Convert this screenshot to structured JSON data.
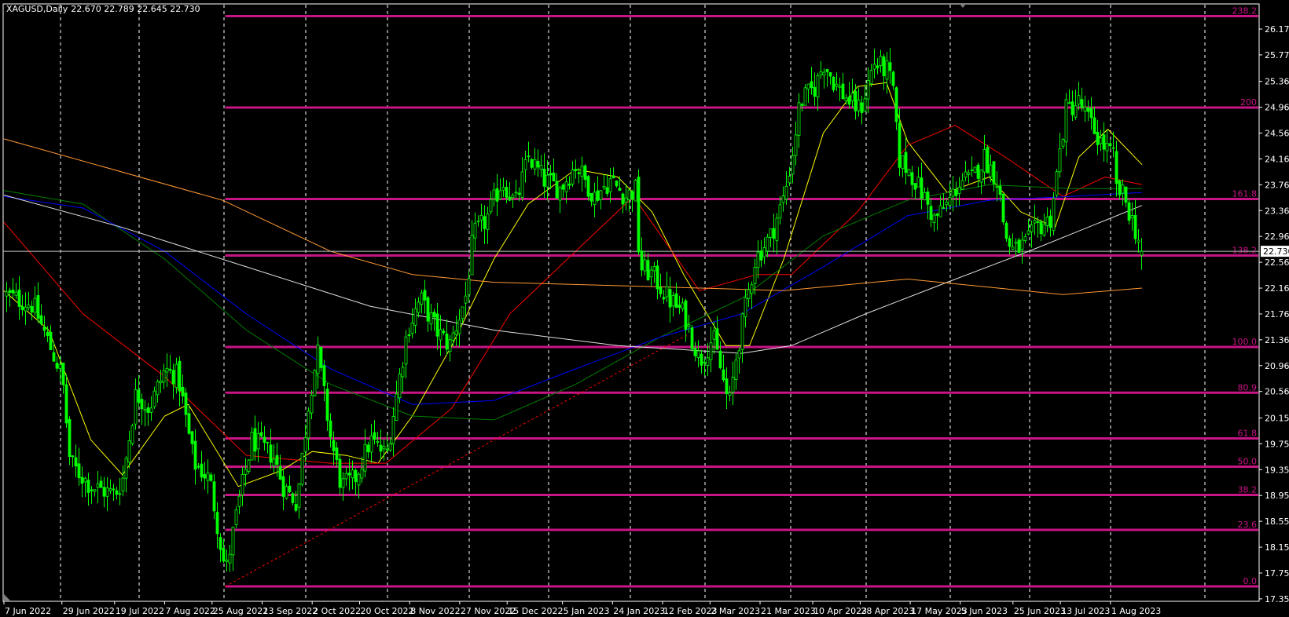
{
  "header": {
    "symbol": "XAGUSD,Daily",
    "ohlc": "22.670 22.789 22.645 22.730"
  },
  "colors": {
    "background": "#000000",
    "candle": "#00ff00",
    "grid": "#ffffff",
    "fibo": "#c71585",
    "fibo_label": "#c71585",
    "trendline": "#ff0000",
    "price_line": "#c0c0c0"
  },
  "chart_data": {
    "type": "candlestick",
    "symbol": "XAGUSD",
    "timeframe": "Daily",
    "last": {
      "open": 22.67,
      "high": 22.789,
      "low": 22.645,
      "close": 22.73
    },
    "ylim": [
      17.35,
      26.37
    ],
    "xlim": [
      "2022-06-07",
      "2023-08-14"
    ],
    "grid": true,
    "y_ticks": [
      "26.170",
      "25.770",
      "25.360",
      "24.960",
      "24.560",
      "24.160",
      "23.760",
      "23.360",
      "22.960",
      "22.560",
      "22.160",
      "21.760",
      "21.360",
      "20.960",
      "20.560",
      "20.150",
      "19.750",
      "19.350",
      "18.950",
      "18.550",
      "18.150",
      "17.750",
      "17.350"
    ],
    "x_ticks": [
      {
        "date": "2022-06-07",
        "label": "7 Jun 2022"
      },
      {
        "date": "2022-06-29",
        "label": "29 Jun 2022"
      },
      {
        "date": "2022-07-19",
        "label": "19 Jul 2022"
      },
      {
        "date": "2022-08-07",
        "label": "7 Aug 2022"
      },
      {
        "date": "2022-08-25",
        "label": "25 Aug 2022"
      },
      {
        "date": "2022-09-13",
        "label": "13 Sep 2022"
      },
      {
        "date": "2022-10-02",
        "label": "2 Oct 2022"
      },
      {
        "date": "2022-10-20",
        "label": "20 Oct 2022"
      },
      {
        "date": "2022-11-08",
        "label": "8 Nov 2022"
      },
      {
        "date": "2022-11-27",
        "label": "27 Nov 2022"
      },
      {
        "date": "2022-12-15",
        "label": "15 Dec 2022"
      },
      {
        "date": "2023-01-05",
        "label": "5 Jan 2023"
      },
      {
        "date": "2023-01-24",
        "label": "24 Jan 2023"
      },
      {
        "date": "2023-02-12",
        "label": "12 Feb 2023"
      },
      {
        "date": "2023-03-02",
        "label": "2 Mar 2023"
      },
      {
        "date": "2023-03-21",
        "label": "21 Mar 2023"
      },
      {
        "date": "2023-04-10",
        "label": "10 Apr 2023"
      },
      {
        "date": "2023-04-28",
        "label": "28 Apr 2023"
      },
      {
        "date": "2023-05-17",
        "label": "17 May 2023"
      },
      {
        "date": "2023-06-05",
        "label": "5 Jun 2023"
      },
      {
        "date": "2023-06-25",
        "label": "25 Jun 2023"
      },
      {
        "date": "2023-07-13",
        "label": "13 Jul 2023"
      },
      {
        "date": "2023-08-01",
        "label": "1 Aug 2023"
      }
    ],
    "current_price": "22.730",
    "fibonacci": {
      "from": {
        "date": "2022-08-30",
        "price": 17.543
      },
      "to": {
        "date": "2023-03-08",
        "price": 21.249
      },
      "levels": [
        {
          "label": "0.0",
          "ratio": 0.0
        },
        {
          "label": "23.6",
          "ratio": 23.6
        },
        {
          "label": "38.2",
          "ratio": 38.2
        },
        {
          "label": "50.0",
          "ratio": 50.0
        },
        {
          "label": "61.8",
          "ratio": 61.8
        },
        {
          "label": "80.9",
          "ratio": 80.9
        },
        {
          "label": "100.0",
          "ratio": 100.0
        },
        {
          "label": "138.2",
          "ratio": 138.2
        },
        {
          "label": "161.8",
          "ratio": 161.8
        },
        {
          "label": "200",
          "ratio": 200
        },
        {
          "label": "238.2",
          "ratio": 238.2
        }
      ]
    },
    "trendline": [
      [
        "2022-08-30",
        17.543
      ],
      [
        "2023-02-22",
        21.45
      ]
    ],
    "close_path": [
      [
        "2022-06-07",
        22.06
      ],
      [
        "2022-06-18",
        21.9
      ],
      [
        "2022-06-29",
        20.79
      ],
      [
        "2022-07-02",
        19.45
      ],
      [
        "2022-07-10",
        19.09
      ],
      [
        "2022-07-19",
        18.97
      ],
      [
        "2022-07-22",
        19.2
      ],
      [
        "2022-07-27",
        20.54
      ],
      [
        "2022-08-01",
        20.3
      ],
      [
        "2022-08-07",
        20.9
      ],
      [
        "2022-08-12",
        20.8
      ],
      [
        "2022-08-18",
        19.45
      ],
      [
        "2022-08-24",
        19.2
      ],
      [
        "2022-08-30",
        17.75
      ],
      [
        "2022-09-04",
        18.84
      ],
      [
        "2022-09-09",
        19.81
      ],
      [
        "2022-09-17",
        19.57
      ],
      [
        "2022-09-21",
        19.09
      ],
      [
        "2022-09-26",
        18.84
      ],
      [
        "2022-10-01",
        20.54
      ],
      [
        "2022-10-04",
        21.15
      ],
      [
        "2022-10-09",
        19.81
      ],
      [
        "2022-10-13",
        19.09
      ],
      [
        "2022-10-18",
        19.2
      ],
      [
        "2022-10-24",
        19.81
      ],
      [
        "2022-10-30",
        19.57
      ],
      [
        "2022-11-03",
        20.54
      ],
      [
        "2022-11-07",
        21.51
      ],
      [
        "2022-11-12",
        22.0
      ],
      [
        "2022-11-18",
        21.51
      ],
      [
        "2022-11-23",
        21.27
      ],
      [
        "2022-11-29",
        22.0
      ],
      [
        "2022-12-02",
        22.97
      ],
      [
        "2022-12-07",
        23.22
      ],
      [
        "2022-12-13",
        23.83
      ],
      [
        "2022-12-18",
        23.46
      ],
      [
        "2022-12-23",
        24.19
      ],
      [
        "2022-12-29",
        23.83
      ],
      [
        "2023-01-04",
        23.7
      ],
      [
        "2023-01-10",
        24.07
      ],
      [
        "2023-01-17",
        23.58
      ],
      [
        "2023-01-23",
        23.83
      ],
      [
        "2023-01-29",
        23.58
      ],
      [
        "2023-02-02",
        23.7
      ],
      [
        "2023-02-03",
        22.49
      ],
      [
        "2023-02-08",
        22.37
      ],
      [
        "2023-02-14",
        22.0
      ],
      [
        "2023-02-20",
        21.76
      ],
      [
        "2023-02-26",
        21.03
      ],
      [
        "2023-03-03",
        21.4
      ],
      [
        "2023-03-08",
        20.54
      ],
      [
        "2023-03-09",
        20.3
      ],
      [
        "2023-03-12",
        21.15
      ],
      [
        "2023-03-16",
        22.0
      ],
      [
        "2023-03-19",
        22.61
      ],
      [
        "2023-03-25",
        22.97
      ],
      [
        "2023-03-30",
        23.58
      ],
      [
        "2023-04-02",
        24.19
      ],
      [
        "2023-04-05",
        25.04
      ],
      [
        "2023-04-11",
        25.28
      ],
      [
        "2023-04-14",
        25.65
      ],
      [
        "2023-04-19",
        25.28
      ],
      [
        "2023-04-24",
        25.04
      ],
      [
        "2023-04-28",
        24.92
      ],
      [
        "2023-05-03",
        25.65
      ],
      [
        "2023-05-08",
        25.53
      ],
      [
        "2023-05-11",
        25.16
      ],
      [
        "2023-05-12",
        24.19
      ],
      [
        "2023-05-17",
        23.95
      ],
      [
        "2023-05-22",
        23.58
      ],
      [
        "2023-05-26",
        23.22
      ],
      [
        "2023-05-31",
        23.46
      ],
      [
        "2023-06-05",
        23.83
      ],
      [
        "2023-06-09",
        23.83
      ],
      [
        "2023-06-14",
        24.19
      ],
      [
        "2023-06-19",
        23.83
      ],
      [
        "2023-06-22",
        22.97
      ],
      [
        "2023-06-25",
        22.73
      ],
      [
        "2023-06-30",
        22.85
      ],
      [
        "2023-07-04",
        23.1
      ],
      [
        "2023-07-09",
        23.22
      ],
      [
        "2023-07-12",
        24.07
      ],
      [
        "2023-07-15",
        24.92
      ],
      [
        "2023-07-20",
        25.04
      ],
      [
        "2023-07-23",
        24.8
      ],
      [
        "2023-07-28",
        24.43
      ],
      [
        "2023-08-02",
        24.19
      ],
      [
        "2023-08-03",
        23.7
      ],
      [
        "2023-08-06",
        23.58
      ],
      [
        "2023-08-09",
        23.22
      ],
      [
        "2023-08-13",
        22.73
      ]
    ],
    "moving_averages": [
      {
        "color": "#ffff00",
        "points": [
          [
            "2022-06-07",
            22.12
          ],
          [
            "2022-06-24",
            21.51
          ],
          [
            "2022-07-10",
            19.81
          ],
          [
            "2022-07-22",
            19.27
          ],
          [
            "2022-08-07",
            20.18
          ],
          [
            "2022-08-16",
            20.36
          ],
          [
            "2022-09-04",
            19.09
          ],
          [
            "2022-09-20",
            19.33
          ],
          [
            "2022-10-02",
            19.63
          ],
          [
            "2022-10-15",
            19.57
          ],
          [
            "2022-10-27",
            19.45
          ],
          [
            "2022-11-09",
            20.18
          ],
          [
            "2022-11-24",
            21.27
          ],
          [
            "2022-12-10",
            22.61
          ],
          [
            "2022-12-23",
            23.46
          ],
          [
            "2023-01-10",
            24.0
          ],
          [
            "2023-01-26",
            23.88
          ],
          [
            "2023-02-08",
            23.34
          ],
          [
            "2023-02-20",
            22.37
          ],
          [
            "2023-03-08",
            21.27
          ],
          [
            "2023-03-17",
            21.27
          ],
          [
            "2023-03-30",
            22.61
          ],
          [
            "2023-04-14",
            24.56
          ],
          [
            "2023-04-27",
            25.28
          ],
          [
            "2023-05-08",
            25.34
          ],
          [
            "2023-05-16",
            24.43
          ],
          [
            "2023-05-31",
            23.64
          ],
          [
            "2023-06-16",
            23.88
          ],
          [
            "2023-06-28",
            23.34
          ],
          [
            "2023-07-11",
            23.1
          ],
          [
            "2023-07-20",
            24.19
          ],
          [
            "2023-07-31",
            24.62
          ],
          [
            "2023-08-13",
            24.07
          ]
        ]
      },
      {
        "color": "#ff0000",
        "points": [
          [
            "2022-06-07",
            23.18
          ],
          [
            "2022-07-07",
            21.76
          ],
          [
            "2022-08-07",
            20.79
          ],
          [
            "2022-09-07",
            19.57
          ],
          [
            "2022-10-09",
            19.45
          ],
          [
            "2022-10-30",
            19.45
          ],
          [
            "2022-11-24",
            20.3
          ],
          [
            "2022-12-16",
            21.76
          ],
          [
            "2023-01-10",
            22.73
          ],
          [
            "2023-02-01",
            23.58
          ],
          [
            "2023-02-26",
            22.12
          ],
          [
            "2023-03-20",
            22.37
          ],
          [
            "2023-04-02",
            22.37
          ],
          [
            "2023-04-27",
            23.34
          ],
          [
            "2023-05-16",
            24.37
          ],
          [
            "2023-06-03",
            24.68
          ],
          [
            "2023-06-22",
            24.19
          ],
          [
            "2023-07-14",
            23.58
          ],
          [
            "2023-07-30",
            23.88
          ],
          [
            "2023-08-13",
            23.76
          ]
        ]
      },
      {
        "color": "#008000",
        "points": [
          [
            "2022-06-07",
            23.67
          ],
          [
            "2022-07-07",
            23.46
          ],
          [
            "2022-08-07",
            22.61
          ],
          [
            "2022-09-07",
            21.51
          ],
          [
            "2022-10-09",
            20.67
          ],
          [
            "2022-11-09",
            20.18
          ],
          [
            "2022-12-10",
            20.12
          ],
          [
            "2023-01-10",
            20.67
          ],
          [
            "2023-02-11",
            21.4
          ],
          [
            "2023-03-14",
            22.0
          ],
          [
            "2023-04-14",
            22.97
          ],
          [
            "2023-05-16",
            23.52
          ],
          [
            "2023-06-16",
            23.76
          ],
          [
            "2023-07-17",
            23.7
          ],
          [
            "2023-08-13",
            23.7
          ]
        ]
      },
      {
        "color": "#0000ff",
        "points": [
          [
            "2022-06-07",
            23.58
          ],
          [
            "2022-07-07",
            23.4
          ],
          [
            "2022-08-07",
            22.73
          ],
          [
            "2022-09-07",
            21.76
          ],
          [
            "2022-10-09",
            20.91
          ],
          [
            "2022-11-09",
            20.36
          ],
          [
            "2022-12-10",
            20.42
          ],
          [
            "2023-01-10",
            20.91
          ],
          [
            "2023-02-11",
            21.4
          ],
          [
            "2023-03-14",
            21.76
          ],
          [
            "2023-04-14",
            22.49
          ],
          [
            "2023-05-16",
            23.28
          ],
          [
            "2023-06-16",
            23.52
          ],
          [
            "2023-07-17",
            23.58
          ],
          [
            "2023-08-13",
            23.64
          ]
        ]
      },
      {
        "color": "#e0e0e0",
        "points": [
          [
            "2022-06-07",
            23.6
          ],
          [
            "2022-07-22",
            23.1
          ],
          [
            "2022-09-07",
            22.49
          ],
          [
            "2022-10-24",
            21.88
          ],
          [
            "2022-12-10",
            21.51
          ],
          [
            "2023-01-26",
            21.27
          ],
          [
            "2023-03-14",
            21.15
          ],
          [
            "2023-04-02",
            21.27
          ],
          [
            "2023-04-30",
            21.76
          ],
          [
            "2023-05-31",
            22.25
          ],
          [
            "2023-07-01",
            22.73
          ],
          [
            "2023-08-13",
            23.44
          ]
        ]
      },
      {
        "color": "#ff9933",
        "points": [
          [
            "2022-06-07",
            24.47
          ],
          [
            "2022-08-29",
            23.52
          ],
          [
            "2022-10-09",
            22.73
          ],
          [
            "2022-11-09",
            22.37
          ],
          [
            "2022-12-10",
            22.25
          ],
          [
            "2023-02-11",
            22.18
          ],
          [
            "2023-03-30",
            22.12
          ],
          [
            "2023-05-16",
            22.3
          ],
          [
            "2023-07-14",
            22.06
          ],
          [
            "2023-08-13",
            22.16
          ]
        ]
      }
    ]
  }
}
